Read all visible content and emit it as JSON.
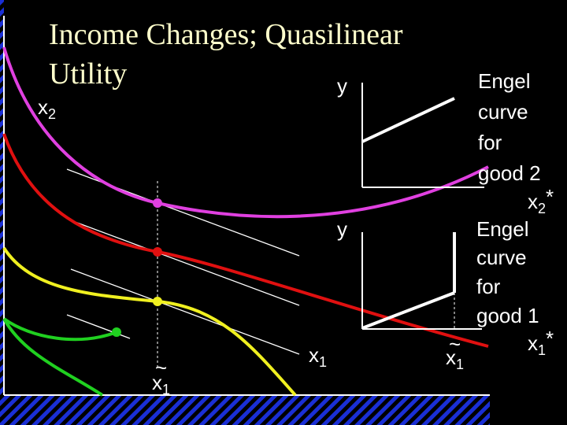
{
  "title": {
    "lines": [
      "Income Changes; Quasilinear",
      "Utility"
    ]
  },
  "main_axes": {
    "y_label": {
      "base": "x",
      "sub": "2"
    },
    "x_label": {
      "base": "x",
      "sub": "1"
    },
    "x_marker": {
      "accent": "~",
      "base": "x",
      "sub": "1"
    }
  },
  "engel_good2": {
    "y_label": "y",
    "caption": [
      "Engel",
      "curve",
      "for",
      "good 2"
    ],
    "x_label": {
      "base": "x",
      "sub": "2",
      "sup": "*"
    }
  },
  "engel_good1": {
    "y_label": "y",
    "caption": [
      "Engel",
      "curve",
      "for",
      "good 1"
    ],
    "x_label": {
      "base": "x",
      "sub": "1",
      "sup": "*"
    },
    "x_marker": {
      "accent": "~",
      "base": "x",
      "sub": "1"
    }
  }
}
